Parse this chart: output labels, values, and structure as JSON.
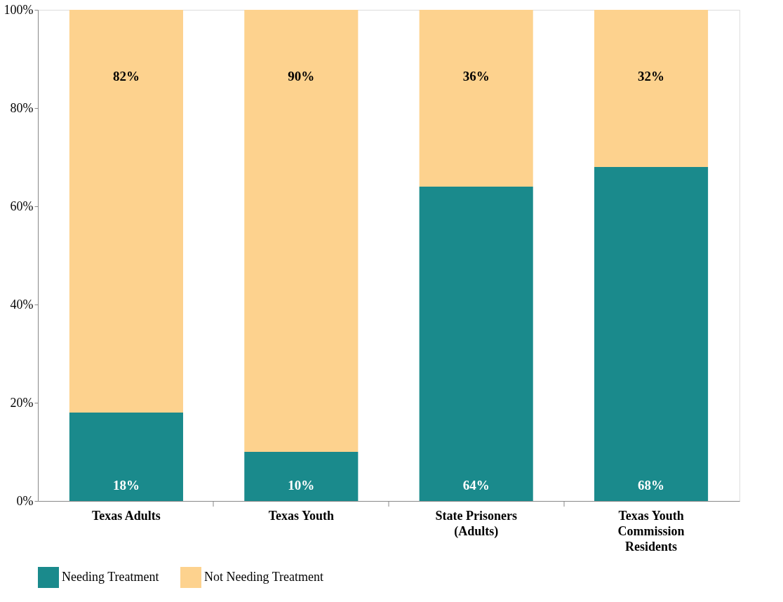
{
  "chart_data": {
    "type": "bar",
    "stacked": true,
    "categories": [
      "Texas Adults",
      "Texas Youth",
      "State Prisoners\n(Adults)",
      "Texas Youth\nCommission\nResidents"
    ],
    "series": [
      {
        "name": "Needing Treatment",
        "color": "#1a8a8c",
        "values": [
          18,
          10,
          64,
          68
        ],
        "value_labels": [
          "18%",
          "10%",
          "64%",
          "68%"
        ]
      },
      {
        "name": "Not Needing Treatment",
        "color": "#fdd28e",
        "values": [
          82,
          90,
          36,
          32
        ],
        "value_labels": [
          "82%",
          "90%",
          "36%",
          "32%"
        ]
      }
    ],
    "ylim": [
      0,
      100
    ],
    "yticks": [
      {
        "value": 0,
        "label": "0%"
      },
      {
        "value": 20,
        "label": "20%"
      },
      {
        "value": 40,
        "label": "40%"
      },
      {
        "value": 60,
        "label": "60%"
      },
      {
        "value": 80,
        "label": "80%"
      },
      {
        "value": 100,
        "label": "100%"
      }
    ],
    "grid": false,
    "legend": "bottom left"
  }
}
